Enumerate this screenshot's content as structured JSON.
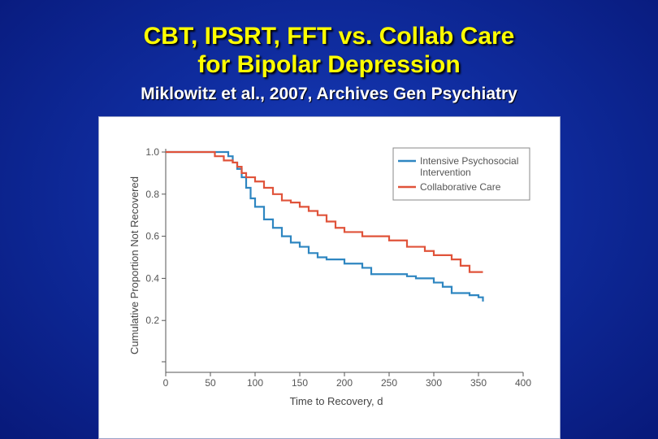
{
  "slide": {
    "title_line1": "CBT, IPSRT, FFT vs. Collab Care",
    "title_line2": "for Bipolar Depression",
    "subtitle": "Miklowitz et al., 2007, Archives Gen Psychiatry"
  },
  "colors": {
    "title": "#ffff00",
    "subtitle": "#ffffff",
    "intensive": "#2e86c1",
    "collaborative": "#e0533a"
  },
  "chart_data": {
    "type": "line",
    "xlabel": "Time to Recovery, d",
    "ylabel": "Cumulative Proportion Not Recovered",
    "xlim": [
      0,
      400
    ],
    "ylim": [
      0,
      1.0
    ],
    "x_ticks": [
      0,
      50,
      100,
      150,
      200,
      250,
      300,
      350,
      400
    ],
    "y_ticks": [
      0.2,
      0.4,
      0.6,
      0.8,
      1.0
    ],
    "y_tick_labels": [
      "0.2",
      "0.4",
      "0.6",
      "0.8",
      "1.0"
    ],
    "grid": false,
    "legend_position": "top-right",
    "series": [
      {
        "name": "Intensive Psychosocial Intervention",
        "color": "#2e86c1",
        "x": [
          0,
          60,
          70,
          75,
          80,
          85,
          90,
          95,
          100,
          110,
          120,
          130,
          140,
          150,
          160,
          170,
          180,
          200,
          220,
          230,
          250,
          270,
          280,
          300,
          310,
          320,
          340,
          350,
          355
        ],
        "y": [
          1.0,
          1.0,
          0.98,
          0.95,
          0.92,
          0.88,
          0.83,
          0.78,
          0.74,
          0.68,
          0.64,
          0.6,
          0.57,
          0.55,
          0.52,
          0.5,
          0.49,
          0.47,
          0.45,
          0.42,
          0.42,
          0.41,
          0.4,
          0.38,
          0.36,
          0.33,
          0.32,
          0.31,
          0.29
        ]
      },
      {
        "name": "Collaborative Care",
        "color": "#e0533a",
        "x": [
          0,
          50,
          55,
          65,
          75,
          80,
          85,
          90,
          100,
          110,
          120,
          130,
          140,
          150,
          160,
          170,
          180,
          190,
          200,
          220,
          250,
          270,
          290,
          300,
          320,
          330,
          340,
          355
        ],
        "y": [
          1.0,
          1.0,
          0.98,
          0.96,
          0.95,
          0.93,
          0.9,
          0.88,
          0.86,
          0.83,
          0.8,
          0.77,
          0.76,
          0.74,
          0.72,
          0.7,
          0.67,
          0.64,
          0.62,
          0.6,
          0.58,
          0.55,
          0.53,
          0.51,
          0.49,
          0.46,
          0.43,
          0.43
        ]
      }
    ]
  }
}
